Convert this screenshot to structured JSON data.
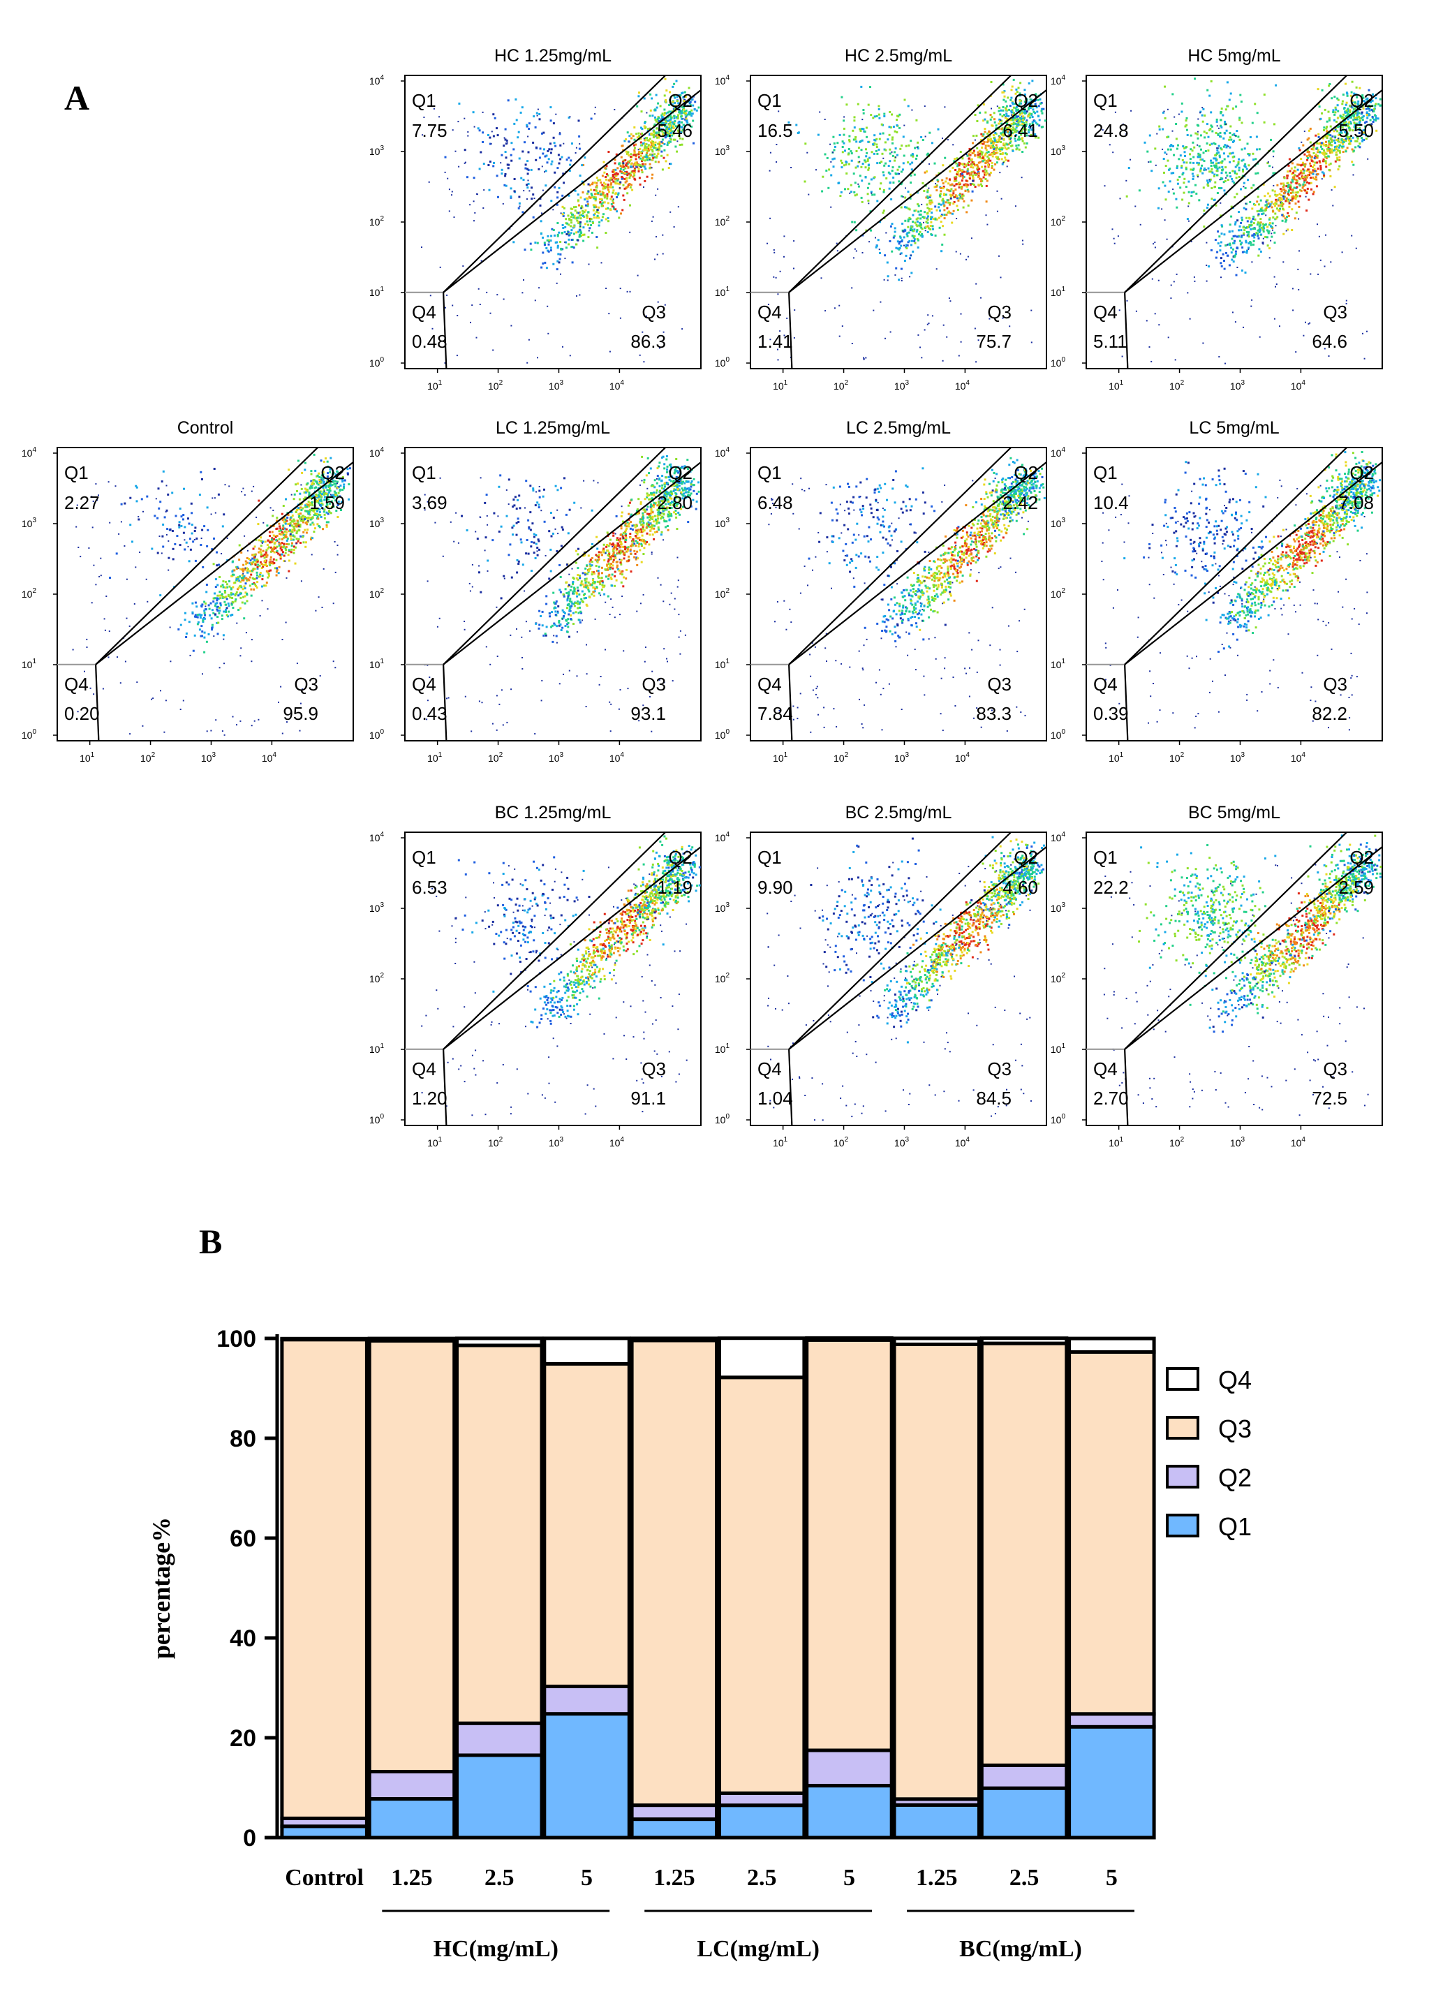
{
  "panel_a_label": "A",
  "panel_b_label": "B",
  "flow_panels": [
    {
      "id": "hc-1.25",
      "title": "HC 1.25mg/mL",
      "q1": "7.75",
      "q2": "5.46",
      "q3": "86.3",
      "q4": "0.48"
    },
    {
      "id": "hc-2.5",
      "title": "HC 2.5mg/mL",
      "q1": "16.5",
      "q2": "6.41",
      "q3": "75.7",
      "q4": "1.41"
    },
    {
      "id": "hc-5",
      "title": "HC 5mg/mL",
      "q1": "24.8",
      "q2": "5.50",
      "q3": "64.6",
      "q4": "5.11"
    },
    {
      "id": "control",
      "title": "Control",
      "q1": "2.27",
      "q2": "1.59",
      "q3": "95.9",
      "q4": "0.20"
    },
    {
      "id": "lc-1.25",
      "title": "LC 1.25mg/mL",
      "q1": "3.69",
      "q2": "2.80",
      "q3": "93.1",
      "q4": "0.43"
    },
    {
      "id": "lc-2.5",
      "title": "LC 2.5mg/mL",
      "q1": "6.48",
      "q2": "2.42",
      "q3": "83.3",
      "q4": "7.84"
    },
    {
      "id": "lc-5",
      "title": "LC 5mg/mL",
      "q1": "10.4",
      "q2": "7.08",
      "q3": "82.2",
      "q4": "0.39"
    },
    {
      "id": "bc-1.25",
      "title": "BC 1.25mg/mL",
      "q1": "6.53",
      "q2": "1.19",
      "q3": "91.1",
      "q4": "1.20"
    },
    {
      "id": "bc-2.5",
      "title": "BC 2.5mg/mL",
      "q1": "9.90",
      "q2": "4.60",
      "q3": "84.5",
      "q4": "1.04"
    },
    {
      "id": "bc-5",
      "title": "BC 5mg/mL",
      "q1": "22.2",
      "q2": "2.59",
      "q3": "72.5",
      "q4": "2.70"
    }
  ],
  "quadrant_names": {
    "q1": "Q1",
    "q2": "Q2",
    "q3": "Q3",
    "q4": "Q4"
  },
  "flow_axis_ticks": {
    "y": [
      {
        "base": "10",
        "exp": "0"
      },
      {
        "base": "10",
        "exp": "1"
      },
      {
        "base": "10",
        "exp": "2"
      },
      {
        "base": "10",
        "exp": "3"
      },
      {
        "base": "10",
        "exp": "4"
      }
    ],
    "x": [
      {
        "base": "10",
        "exp": "1"
      },
      {
        "base": "10",
        "exp": "2"
      },
      {
        "base": "10",
        "exp": "3"
      },
      {
        "base": "10",
        "exp": "4"
      }
    ]
  },
  "chart_data": {
    "type": "bar",
    "stacked": true,
    "title": "",
    "xlabel": "",
    "ylabel": "percentage%",
    "ylim": [
      0,
      100
    ],
    "yticks": [
      0,
      20,
      40,
      60,
      80,
      100
    ],
    "categories": [
      "Control",
      "1.25",
      "2.5",
      "5",
      "1.25",
      "2.5",
      "5",
      "1.25",
      "2.5",
      "5"
    ],
    "groups": [
      {
        "label": "HC(mg/mL)",
        "categories": [
          1,
          2,
          3
        ]
      },
      {
        "label": "LC(mg/mL)",
        "categories": [
          4,
          5,
          6
        ]
      },
      {
        "label": "BC(mg/mL)",
        "categories": [
          7,
          8,
          9
        ]
      }
    ],
    "series": [
      {
        "name": "Q1",
        "color": "#70b8ff",
        "values": [
          2.27,
          7.75,
          16.5,
          24.8,
          3.69,
          6.48,
          10.4,
          6.53,
          9.9,
          22.2
        ]
      },
      {
        "name": "Q2",
        "color": "#c8bff5",
        "values": [
          1.59,
          5.46,
          6.41,
          5.5,
          2.8,
          2.42,
          7.08,
          1.19,
          4.6,
          2.59
        ]
      },
      {
        "name": "Q3",
        "color": "#fde0c2",
        "values": [
          95.9,
          86.3,
          75.7,
          64.6,
          93.1,
          83.3,
          82.2,
          91.1,
          84.5,
          72.5
        ]
      },
      {
        "name": "Q4",
        "color": "#ffffff",
        "values": [
          0.2,
          0.48,
          1.41,
          5.11,
          0.43,
          7.84,
          0.39,
          1.2,
          1.04,
          2.7
        ]
      }
    ],
    "legend": {
      "position": "right",
      "order": [
        "Q4",
        "Q3",
        "Q2",
        "Q1"
      ]
    }
  }
}
